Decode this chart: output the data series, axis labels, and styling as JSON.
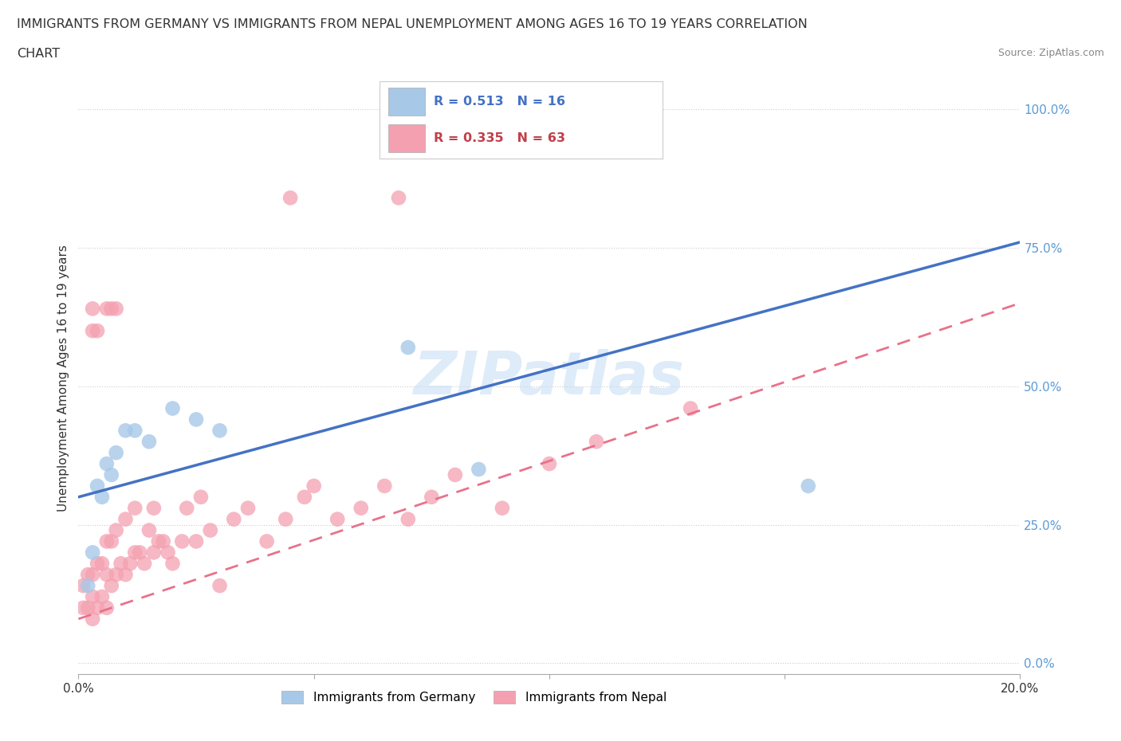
{
  "title_line1": "IMMIGRANTS FROM GERMANY VS IMMIGRANTS FROM NEPAL UNEMPLOYMENT AMONG AGES 16 TO 19 YEARS CORRELATION",
  "title_line2": "CHART",
  "source": "Source: ZipAtlas.com",
  "ylabel": "Unemployment Among Ages 16 to 19 years",
  "legend_germany": "Immigrants from Germany",
  "legend_nepal": "Immigrants from Nepal",
  "germany_R": "0.513",
  "germany_N": "16",
  "nepal_R": "0.335",
  "nepal_N": "63",
  "germany_color": "#a8c8e8",
  "nepal_color": "#f4a0b0",
  "germany_line_color": "#4472c4",
  "nepal_line_color": "#e8728a",
  "background_color": "#ffffff",
  "watermark": "ZIPatlas",
  "xlim": [
    0.0,
    0.2
  ],
  "ylim": [
    -0.02,
    1.05
  ],
  "yticks": [
    0.0,
    0.25,
    0.5,
    0.75,
    1.0
  ],
  "ytick_labels": [
    "0.0%",
    "25.0%",
    "50.0%",
    "75.0%",
    "100.0%"
  ],
  "xticks": [
    0.0,
    0.05,
    0.1,
    0.15,
    0.2
  ],
  "xtick_labels": [
    "0.0%",
    "",
    "",
    "",
    "20.0%"
  ],
  "germany_line_x0": 0.0,
  "germany_line_y0": 0.3,
  "germany_line_x1": 0.2,
  "germany_line_y1": 0.76,
  "nepal_line_x0": 0.0,
  "nepal_line_y0": 0.08,
  "nepal_line_x1": 0.2,
  "nepal_line_y1": 0.65,
  "germany_x": [
    0.002,
    0.003,
    0.004,
    0.005,
    0.006,
    0.007,
    0.008,
    0.01,
    0.012,
    0.015,
    0.02,
    0.025,
    0.03,
    0.07,
    0.085,
    0.155
  ],
  "germany_y": [
    0.14,
    0.2,
    0.32,
    0.3,
    0.36,
    0.34,
    0.38,
    0.42,
    0.42,
    0.4,
    0.46,
    0.44,
    0.42,
    0.57,
    0.35,
    0.32
  ],
  "nepal_x": [
    0.001,
    0.001,
    0.002,
    0.002,
    0.003,
    0.003,
    0.003,
    0.004,
    0.004,
    0.005,
    0.005,
    0.006,
    0.006,
    0.006,
    0.007,
    0.007,
    0.008,
    0.008,
    0.009,
    0.01,
    0.01,
    0.011,
    0.012,
    0.012,
    0.013,
    0.014,
    0.015,
    0.016,
    0.016,
    0.017,
    0.018,
    0.019,
    0.02,
    0.022,
    0.023,
    0.025,
    0.026,
    0.028,
    0.03,
    0.033,
    0.036,
    0.04,
    0.044,
    0.048,
    0.05,
    0.055,
    0.06,
    0.065,
    0.07,
    0.075,
    0.08,
    0.09,
    0.1,
    0.11,
    0.13,
    0.045,
    0.068,
    0.003,
    0.003,
    0.004,
    0.006,
    0.007,
    0.008
  ],
  "nepal_y": [
    0.1,
    0.14,
    0.1,
    0.16,
    0.08,
    0.12,
    0.16,
    0.1,
    0.18,
    0.12,
    0.18,
    0.1,
    0.16,
    0.22,
    0.14,
    0.22,
    0.16,
    0.24,
    0.18,
    0.16,
    0.26,
    0.18,
    0.2,
    0.28,
    0.2,
    0.18,
    0.24,
    0.2,
    0.28,
    0.22,
    0.22,
    0.2,
    0.18,
    0.22,
    0.28,
    0.22,
    0.3,
    0.24,
    0.14,
    0.26,
    0.28,
    0.22,
    0.26,
    0.3,
    0.32,
    0.26,
    0.28,
    0.32,
    0.26,
    0.3,
    0.34,
    0.28,
    0.36,
    0.4,
    0.46,
    0.84,
    0.84,
    0.64,
    0.6,
    0.6,
    0.64,
    0.64,
    0.64
  ]
}
